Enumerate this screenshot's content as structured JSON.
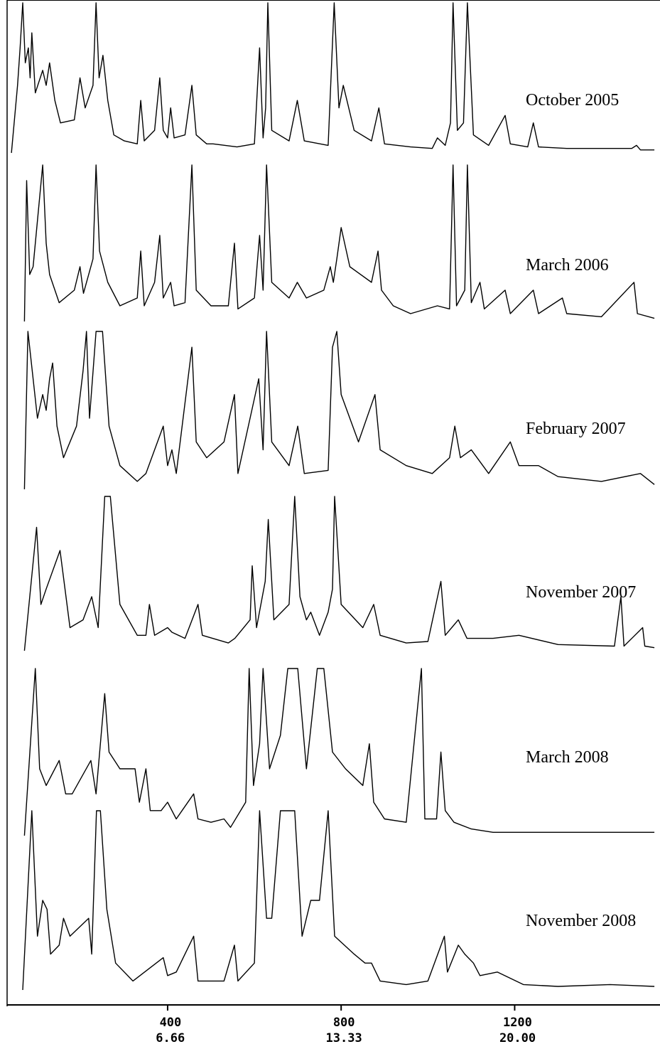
{
  "chart_data": {
    "type": "line",
    "stacked_traces": true,
    "color": "#000000",
    "xlim": [
      30,
      1535
    ],
    "xticks": [
      400,
      800,
      1200
    ],
    "x2lim": [
      0.5,
      25.58
    ],
    "x2ticks": [
      6.66,
      13.33,
      {
        "value": 20,
        "label": "20.00"
      }
    ],
    "ylim": [
      0,
      100
    ],
    "series": [
      {
        "name": "October 2005",
        "color": "#000000",
        "x": [
          40,
          54,
          60,
          66,
          72,
          79,
          83,
          87,
          95,
          112,
          120,
          128,
          140,
          153,
          185,
          198,
          210,
          228,
          235,
          242,
          251,
          262,
          276,
          300,
          330,
          338,
          346,
          370,
          382,
          390,
          400,
          407,
          415,
          440,
          456,
          466,
          490,
          505,
          560,
          600,
          612,
          620,
          626,
          631,
          640,
          680,
          699,
          715,
          770,
          784,
          795,
          805,
          830,
          870,
          887,
          900,
          960,
          1010,
          1022,
          1040,
          1052,
          1058,
          1068,
          1082,
          1091,
          1105,
          1140,
          1178,
          1190,
          1230,
          1243,
          1255,
          1320,
          1400,
          1470,
          1481,
          1490,
          1522
        ],
        "values": [
          0,
          45,
          70,
          100,
          60,
          70,
          50,
          80,
          40,
          55,
          45,
          60,
          35,
          20,
          22,
          50,
          30,
          45,
          100,
          50,
          65,
          35,
          12,
          8,
          6,
          35,
          8,
          15,
          50,
          15,
          10,
          30,
          10,
          12,
          45,
          12,
          6,
          6,
          4,
          6,
          70,
          10,
          30,
          100,
          15,
          8,
          35,
          8,
          5,
          100,
          30,
          45,
          15,
          8,
          30,
          6,
          4,
          3,
          10,
          5,
          20,
          100,
          15,
          20,
          100,
          12,
          5,
          25,
          6,
          4,
          20,
          4,
          3,
          3,
          3,
          5,
          2,
          2
        ]
      },
      {
        "name": "March 2006",
        "color": "#000000",
        "x": [
          70,
          75,
          82,
          90,
          112,
          120,
          128,
          150,
          185,
          198,
          206,
          228,
          235,
          243,
          262,
          290,
          330,
          338,
          346,
          370,
          382,
          390,
          407,
          415,
          440,
          456,
          466,
          500,
          540,
          554,
          562,
          600,
          612,
          620,
          628,
          640,
          680,
          699,
          720,
          760,
          775,
          782,
          790,
          800,
          820,
          870,
          885,
          893,
          920,
          960,
          1022,
          1050,
          1058,
          1066,
          1085,
          1091,
          1100,
          1120,
          1130,
          1178,
          1190,
          1243,
          1255,
          1310,
          1320,
          1400,
          1475,
          1483,
          1522
        ],
        "values": [
          0,
          90,
          30,
          35,
          100,
          50,
          30,
          12,
          20,
          35,
          18,
          40,
          100,
          45,
          25,
          10,
          15,
          45,
          10,
          25,
          55,
          15,
          25,
          10,
          12,
          100,
          20,
          10,
          10,
          50,
          8,
          15,
          55,
          20,
          100,
          25,
          15,
          25,
          15,
          20,
          35,
          25,
          40,
          60,
          35,
          25,
          45,
          20,
          10,
          5,
          10,
          8,
          100,
          10,
          20,
          100,
          12,
          25,
          8,
          20,
          5,
          20,
          5,
          15,
          5,
          3,
          25,
          5,
          2
        ]
      },
      {
        "name": "February 2007",
        "color": "#000000",
        "x": [
          70,
          78,
          90,
          100,
          112,
          120,
          128,
          135,
          145,
          160,
          190,
          205,
          213,
          220,
          235,
          250,
          265,
          290,
          330,
          350,
          390,
          400,
          410,
          420,
          456,
          466,
          490,
          530,
          554,
          562,
          610,
          620,
          628,
          640,
          680,
          700,
          715,
          770,
          780,
          790,
          800,
          840,
          878,
          890,
          950,
          1010,
          1050,
          1062,
          1075,
          1100,
          1140,
          1190,
          1210,
          1255,
          1300,
          1400,
          1490,
          1522
        ],
        "values": [
          0,
          100,
          70,
          45,
          60,
          50,
          70,
          80,
          40,
          20,
          40,
          75,
          100,
          45,
          100,
          100,
          40,
          15,
          5,
          10,
          40,
          15,
          25,
          10,
          90,
          30,
          20,
          30,
          60,
          10,
          70,
          25,
          100,
          30,
          15,
          40,
          10,
          12,
          90,
          100,
          60,
          30,
          60,
          25,
          15,
          10,
          20,
          40,
          20,
          25,
          10,
          30,
          15,
          15,
          8,
          5,
          10,
          3
        ]
      },
      {
        "name": "November 2007",
        "color": "#000000",
        "x": [
          70,
          98,
          108,
          120,
          152,
          175,
          205,
          225,
          240,
          255,
          268,
          290,
          330,
          350,
          358,
          370,
          400,
          410,
          440,
          470,
          480,
          540,
          555,
          590,
          595,
          605,
          625,
          632,
          645,
          680,
          693,
          705,
          720,
          730,
          750,
          770,
          780,
          785,
          800,
          850,
          875,
          890,
          950,
          1000,
          1030,
          1040,
          1070,
          1090,
          1150,
          1210,
          1300,
          1430,
          1445,
          1452,
          1495,
          1500,
          1522
        ],
        "values": [
          0,
          80,
          30,
          40,
          65,
          15,
          20,
          35,
          15,
          100,
          100,
          30,
          10,
          10,
          30,
          10,
          15,
          12,
          8,
          30,
          10,
          5,
          8,
          20,
          55,
          15,
          45,
          85,
          20,
          30,
          100,
          35,
          20,
          25,
          10,
          25,
          40,
          100,
          30,
          15,
          30,
          10,
          5,
          6,
          45,
          10,
          20,
          8,
          8,
          10,
          4,
          3,
          35,
          3,
          15,
          3,
          2
        ]
      },
      {
        "name": "March 2008",
        "color": "#000000",
        "x": [
          70,
          95,
          105,
          120,
          150,
          165,
          180,
          223,
          235,
          255,
          265,
          290,
          325,
          335,
          350,
          360,
          385,
          400,
          420,
          460,
          470,
          500,
          530,
          545,
          580,
          588,
          598,
          612,
          620,
          635,
          660,
          677,
          700,
          720,
          745,
          760,
          780,
          810,
          850,
          865,
          875,
          900,
          950,
          985,
          993,
          1020,
          1030,
          1040,
          1060,
          1100,
          1150,
          1522
        ],
        "values": [
          0,
          100,
          40,
          30,
          45,
          25,
          25,
          45,
          25,
          85,
          50,
          40,
          40,
          20,
          40,
          15,
          15,
          20,
          10,
          25,
          10,
          8,
          10,
          5,
          20,
          100,
          30,
          55,
          100,
          40,
          60,
          100,
          100,
          40,
          100,
          100,
          50,
          40,
          30,
          55,
          20,
          10,
          8,
          100,
          10,
          10,
          50,
          15,
          8,
          4,
          2,
          2
        ]
      },
      {
        "name": "November 2008",
        "color": "#000000",
        "x": [
          66,
          87,
          100,
          112,
          122,
          130,
          150,
          160,
          175,
          218,
          225,
          236,
          245,
          260,
          280,
          320,
          390,
          400,
          420,
          460,
          470,
          530,
          554,
          562,
          600,
          612,
          628,
          640,
          660,
          680,
          693,
          710,
          730,
          750,
          770,
          785,
          830,
          855,
          870,
          890,
          950,
          1000,
          1038,
          1045,
          1070,
          1085,
          1105,
          1120,
          1160,
          1220,
          1300,
          1420,
          1522
        ],
        "values": [
          0,
          100,
          30,
          50,
          45,
          20,
          25,
          40,
          30,
          40,
          20,
          100,
          100,
          45,
          15,
          5,
          18,
          8,
          10,
          30,
          5,
          5,
          25,
          5,
          15,
          100,
          40,
          40,
          100,
          100,
          100,
          30,
          50,
          50,
          100,
          30,
          20,
          15,
          15,
          5,
          3,
          5,
          30,
          10,
          25,
          20,
          15,
          8,
          10,
          3,
          2,
          3,
          2
        ]
      }
    ]
  }
}
